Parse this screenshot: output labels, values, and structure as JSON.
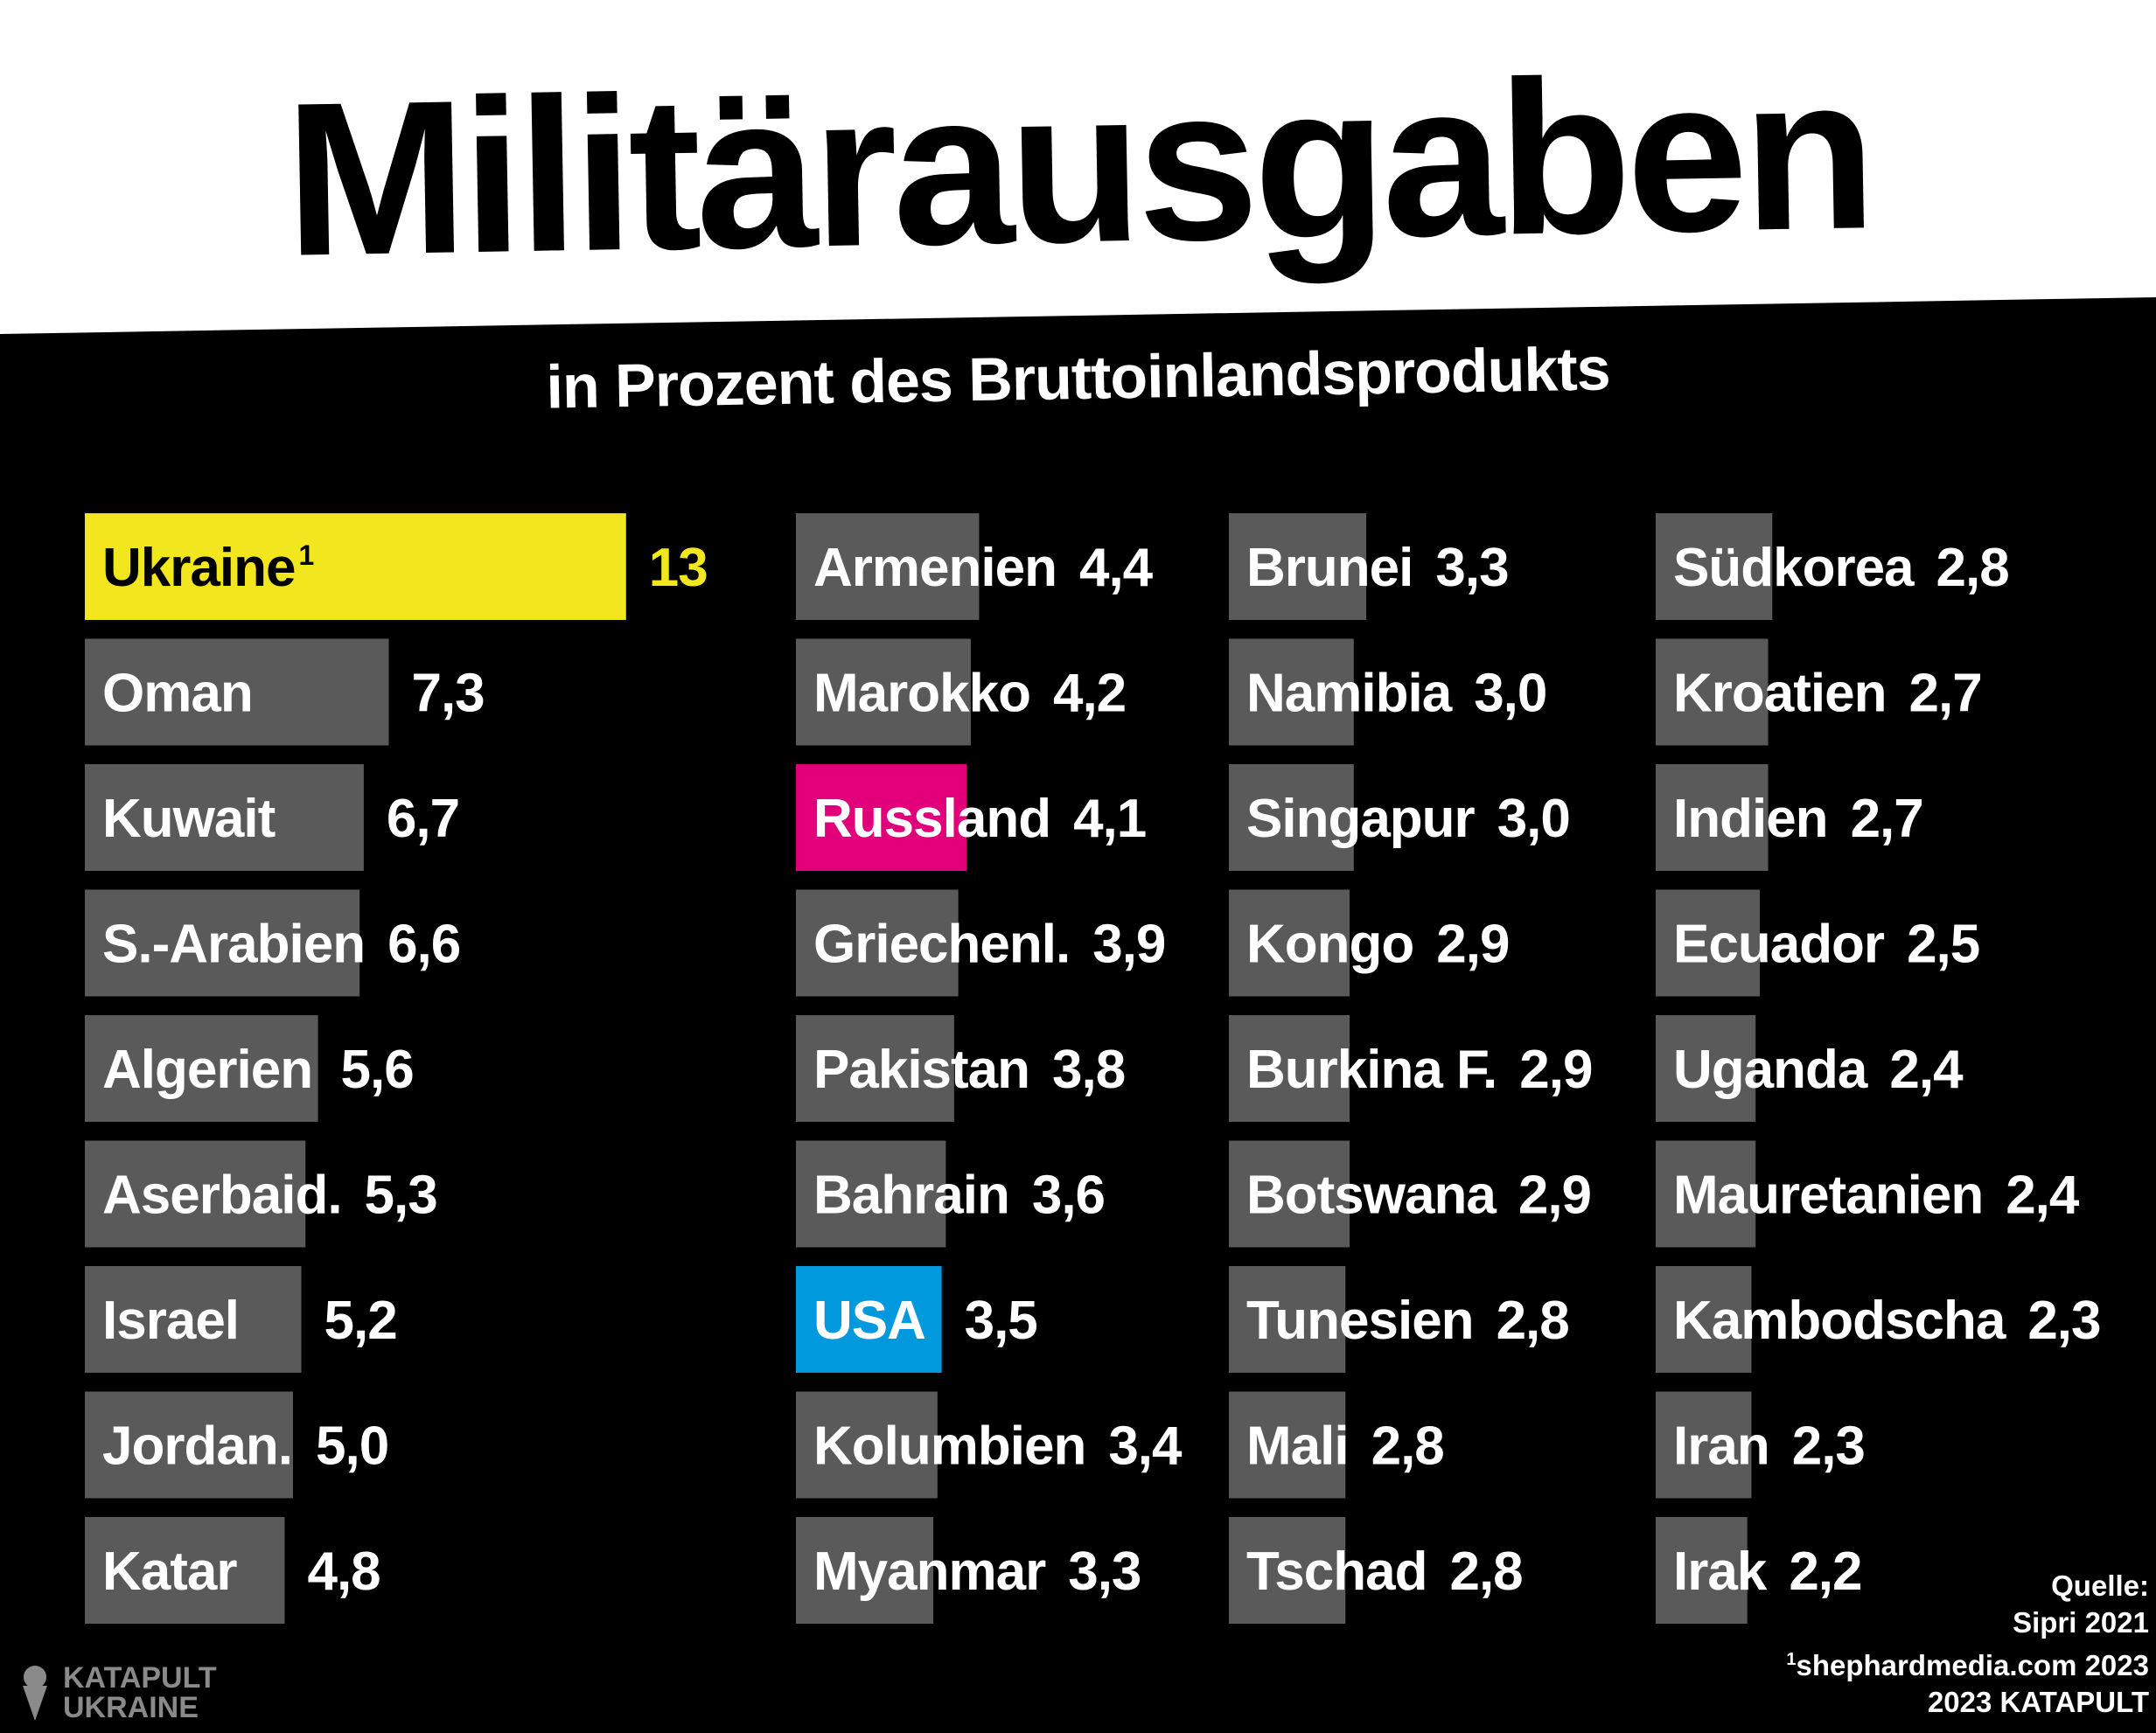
{
  "title": "Militärausgaben",
  "subtitle": "in Prozent des Bruttoinlandsprodukts",
  "colors": {
    "default": "#5a5a5a",
    "ukraine": "#f2e71f",
    "russland": "#e1007a",
    "usa": "#0099dd"
  },
  "chart_data": {
    "type": "bar",
    "unit": "Prozent des Bruttoinlandsprodukts",
    "columns": [
      [
        {
          "name": "Ukraine",
          "footnote": "1",
          "label": "13",
          "value": 13,
          "highlight": "ukraine"
        },
        {
          "name": "Oman",
          "label": "7,3",
          "value": 7.3
        },
        {
          "name": "Kuwait",
          "label": "6,7",
          "value": 6.7
        },
        {
          "name": "S.-Arabien",
          "label": "6,6",
          "value": 6.6
        },
        {
          "name": "Algerien",
          "label": "5,6",
          "value": 5.6
        },
        {
          "name": "Aserbaid.",
          "label": "5,3",
          "value": 5.3
        },
        {
          "name": "Israel",
          "label": "5,2",
          "value": 5.2
        },
        {
          "name": "Jordan.",
          "label": "5,0",
          "value": 5.0
        },
        {
          "name": "Katar",
          "label": "4,8",
          "value": 4.8
        }
      ],
      [
        {
          "name": "Armenien",
          "label": "4,4",
          "value": 4.4
        },
        {
          "name": "Marokko",
          "label": "4,2",
          "value": 4.2
        },
        {
          "name": "Russland",
          "label": "4,1",
          "value": 4.1,
          "highlight": "russland"
        },
        {
          "name": "Griechenl.",
          "label": "3,9",
          "value": 3.9
        },
        {
          "name": "Pakistan",
          "label": "3,8",
          "value": 3.8
        },
        {
          "name": "Bahrain",
          "label": "3,6",
          "value": 3.6
        },
        {
          "name": "USA",
          "label": "3,5",
          "value": 3.5,
          "highlight": "usa"
        },
        {
          "name": "Kolumbien",
          "label": "3,4",
          "value": 3.4
        },
        {
          "name": "Myanmar",
          "label": "3,3",
          "value": 3.3
        }
      ],
      [
        {
          "name": "Brunei",
          "label": "3,3",
          "value": 3.3
        },
        {
          "name": "Namibia",
          "label": "3,0",
          "value": 3.0
        },
        {
          "name": "Singapur",
          "label": "3,0",
          "value": 3.0
        },
        {
          "name": "Kongo",
          "label": "2,9",
          "value": 2.9
        },
        {
          "name": "Burkina F.",
          "label": "2,9",
          "value": 2.9
        },
        {
          "name": "Botswana",
          "label": "2,9",
          "value": 2.9
        },
        {
          "name": "Tunesien",
          "label": "2,8",
          "value": 2.8
        },
        {
          "name": "Mali",
          "label": "2,8",
          "value": 2.8
        },
        {
          "name": "Tschad",
          "label": "2,8",
          "value": 2.8
        }
      ],
      [
        {
          "name": "Südkorea",
          "label": "2,8",
          "value": 2.8
        },
        {
          "name": "Kroatien",
          "label": "2,7",
          "value": 2.7
        },
        {
          "name": "Indien",
          "label": "2,7",
          "value": 2.7
        },
        {
          "name": "Ecuador",
          "label": "2,5",
          "value": 2.5
        },
        {
          "name": "Uganda",
          "label": "2,4",
          "value": 2.4
        },
        {
          "name": "Mauretanien",
          "label": "2,4",
          "value": 2.4
        },
        {
          "name": "Kambodscha",
          "label": "2,3",
          "value": 2.3
        },
        {
          "name": "Iran",
          "label": "2,3",
          "value": 2.3
        },
        {
          "name": "Irak",
          "label": "2,2",
          "value": 2.2
        }
      ]
    ]
  },
  "source": {
    "heading": "Quelle:",
    "line1": "Sipri 2021",
    "line2_sup": "1",
    "line2": "shephardmedia.com 2023",
    "line3": "2023 KATAPULT"
  },
  "logo": {
    "line1": "KATAPULT",
    "line2": "UKRAINE"
  }
}
